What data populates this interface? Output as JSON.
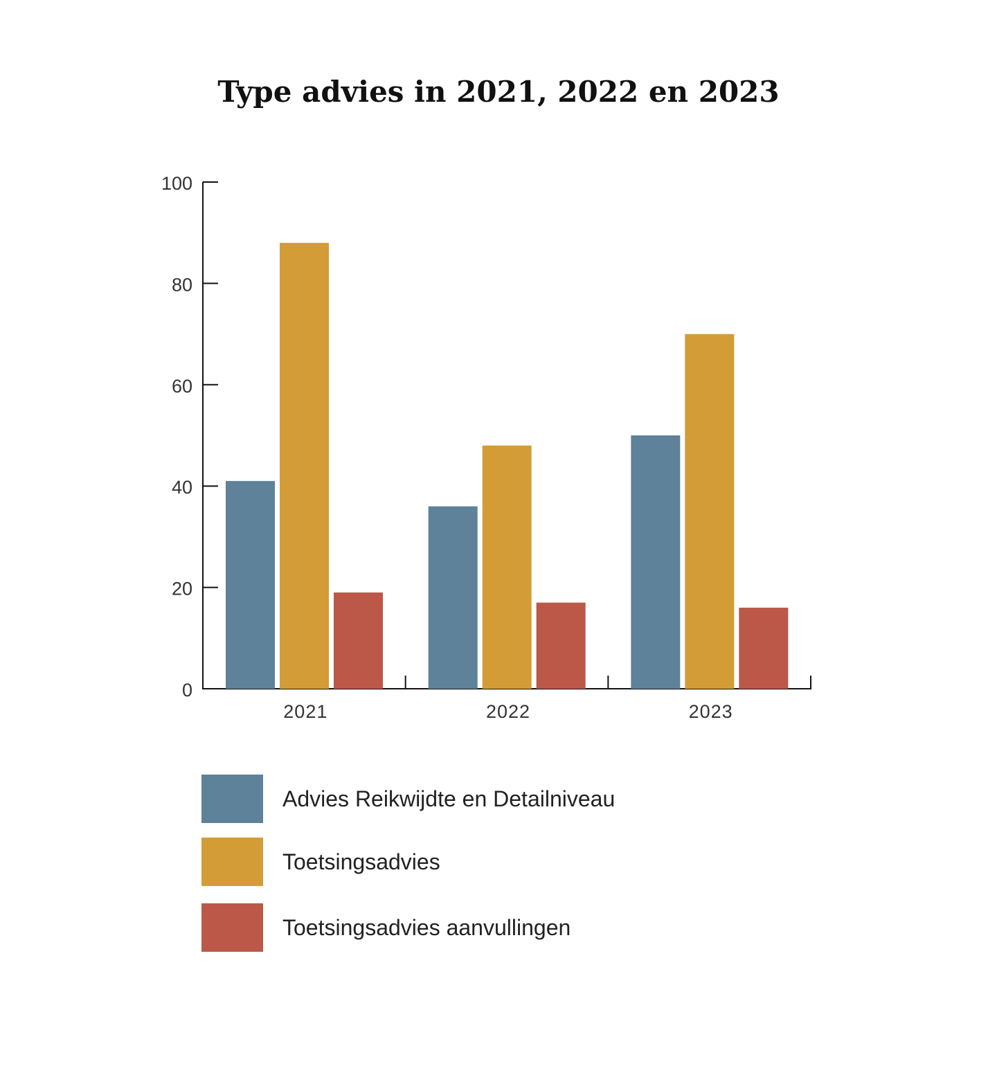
{
  "chart_data": {
    "type": "bar",
    "title": "Type advies in 2021, 2022 en 2023",
    "xlabel": "",
    "ylabel": "",
    "ylim": [
      0,
      100
    ],
    "yticks": [
      "0",
      "20",
      "40",
      "60",
      "80",
      "100"
    ],
    "categories": [
      "2021",
      "2022",
      "2023"
    ],
    "series": [
      {
        "name": "Advies Reikwijdte en Detailniveau",
        "color": "#5d8299",
        "values": [
          41,
          36,
          50
        ]
      },
      {
        "name": "Toetsingsadvies",
        "color": "#d39c36",
        "values": [
          88,
          48,
          70
        ]
      },
      {
        "name": "Toetsingsadvies aanvullingen",
        "color": "#bb5848",
        "values": [
          19,
          17,
          16
        ]
      }
    ],
    "legend_position": "bottom-left",
    "grid": false
  }
}
